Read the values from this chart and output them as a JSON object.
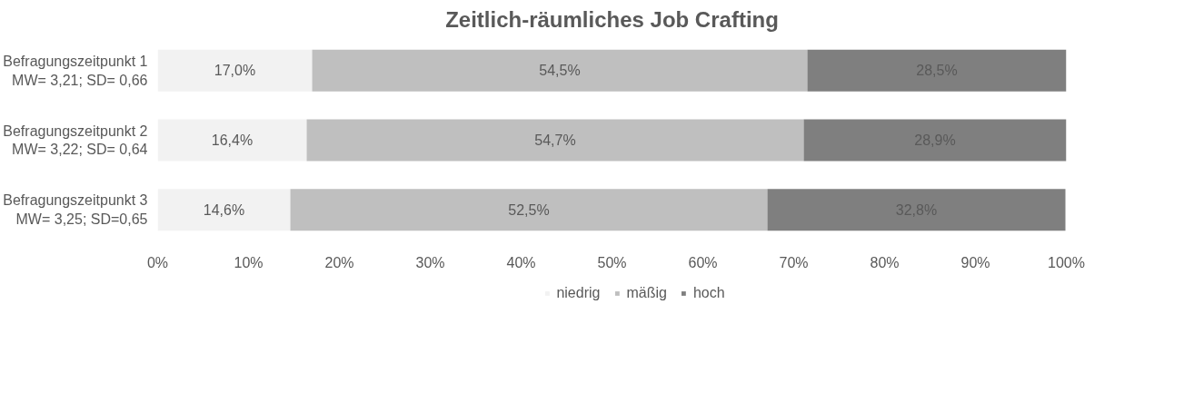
{
  "chart_data": {
    "type": "bar",
    "orientation": "horizontal",
    "stacked": true,
    "title": "Zeitlich-räumliches Job Crafting",
    "categories": [
      "Befragungszeitpunkt 1\nMW= 3,21; SD= 0,66",
      "Befragungszeitpunkt 2\nMW= 3,22; SD= 0,64",
      "Befragungszeitpunkt 3\nMW= 3,25; SD=0,65"
    ],
    "series": [
      {
        "name": "niedrig",
        "color": "#f2f2f2",
        "values": [
          17.0,
          16.4,
          14.6
        ],
        "value_labels": [
          "17,0%",
          "16,4%",
          "14,6%"
        ]
      },
      {
        "name": "mäßig",
        "color": "#bfbfbf",
        "values": [
          54.5,
          54.7,
          52.5
        ],
        "value_labels": [
          "54,5%",
          "54,7%",
          "52,5%"
        ]
      },
      {
        "name": "hoch",
        "color": "#7f7f7f",
        "values": [
          28.5,
          28.9,
          32.8
        ],
        "value_labels": [
          "28,5%",
          "28,9%",
          "32,8%"
        ]
      }
    ],
    "xlim": [
      0,
      100
    ],
    "xticks": [
      {
        "value": 0,
        "label": "0%"
      },
      {
        "value": 10,
        "label": "10%"
      },
      {
        "value": 20,
        "label": "20%"
      },
      {
        "value": 30,
        "label": "30%"
      },
      {
        "value": 40,
        "label": "40%"
      },
      {
        "value": 50,
        "label": "50%"
      },
      {
        "value": 60,
        "label": "60%"
      },
      {
        "value": 70,
        "label": "70%"
      },
      {
        "value": 80,
        "label": "80%"
      },
      {
        "value": 90,
        "label": "90%"
      },
      {
        "value": 100,
        "label": "100%"
      }
    ],
    "grid": false,
    "legend": "bottom"
  }
}
